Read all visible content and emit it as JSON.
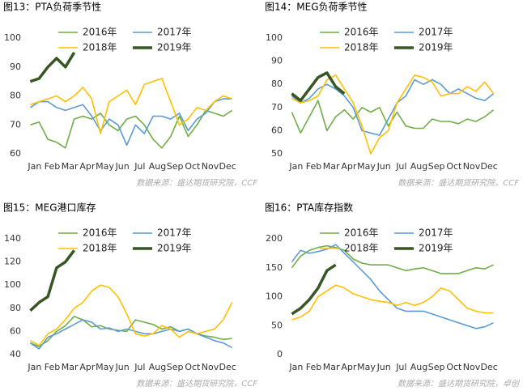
{
  "chart_data": [
    {
      "type": "line",
      "title": "图13：PTA负荷季节性",
      "source": "数据来源：盛达期货研究院，CCF",
      "categories": [
        "Jan",
        null,
        "Feb",
        null,
        "Mar",
        null,
        "Apr",
        null,
        "May",
        null,
        "Jun",
        null,
        "Jul",
        null,
        "Aug",
        null,
        "Sep",
        null,
        "Oct",
        null,
        "Nov",
        null,
        "Dec",
        null
      ],
      "ylim": [
        60,
        100
      ],
      "yticks": [
        60,
        70,
        80,
        90,
        100
      ],
      "series": [
        {
          "name": "2016年",
          "color": "#70ad47",
          "values": [
            70,
            71,
            65,
            64,
            62,
            72,
            73,
            72,
            74,
            70,
            68,
            72,
            73,
            70,
            65,
            62,
            66,
            73,
            66,
            70,
            75,
            74,
            73,
            75
          ]
        },
        {
          "name": "2017年",
          "color": "#5b9bd5",
          "values": [
            76,
            78,
            78,
            76,
            75,
            76,
            77,
            73,
            68,
            72,
            70,
            63,
            70,
            67,
            73,
            73,
            72,
            74,
            68,
            72,
            74,
            78,
            79,
            79
          ]
        },
        {
          "name": "2018年",
          "color": "#ffc000",
          "values": [
            77,
            78,
            79,
            80,
            78,
            80,
            83,
            79,
            67,
            78,
            80,
            82,
            77,
            84,
            85,
            86,
            78,
            70,
            72,
            76,
            75,
            78,
            80,
            79
          ]
        },
        {
          "name": "2019年",
          "color": "#375623",
          "values": [
            85,
            86,
            90,
            93,
            90,
            95,
            null,
            null,
            null,
            null,
            null,
            null,
            null,
            null,
            null,
            null,
            null,
            null,
            null,
            null,
            null,
            null,
            null,
            null
          ]
        }
      ]
    },
    {
      "type": "line",
      "title": "图14：MEG负荷季节性",
      "source": "数据来源：盛达期货研究院，CCF",
      "categories": [
        "Jan",
        null,
        "Feb",
        null,
        "Mar",
        null,
        "Apr",
        null,
        "May",
        null,
        "Jun",
        null,
        "Jul",
        null,
        "Aug",
        null,
        "Sep",
        null,
        "Oct",
        null,
        "Nov",
        null,
        "Dec",
        null
      ],
      "ylim": [
        50,
        100
      ],
      "yticks": [
        50,
        60,
        70,
        80,
        90,
        100
      ],
      "series": [
        {
          "name": "2016年",
          "color": "#70ad47",
          "values": [
            68,
            59,
            66,
            73,
            60,
            66,
            69,
            65,
            70,
            68,
            70,
            62,
            68,
            62,
            61,
            61,
            65,
            64,
            64,
            63,
            65,
            64,
            66,
            69
          ]
        },
        {
          "name": "2017年",
          "color": "#5b9bd5",
          "values": [
            75,
            72,
            74,
            78,
            80,
            78,
            75,
            70,
            60,
            59,
            58,
            65,
            72,
            75,
            82,
            80,
            82,
            80,
            76,
            78,
            76,
            74,
            73,
            76
          ]
        },
        {
          "name": "2018年",
          "color": "#ffc000",
          "values": [
            74,
            72,
            73,
            75,
            82,
            84,
            78,
            72,
            62,
            50,
            57,
            60,
            72,
            78,
            84,
            83,
            81,
            75,
            76,
            76,
            79,
            77,
            81,
            76
          ]
        },
        {
          "name": "2019年",
          "color": "#375623",
          "values": [
            76,
            73,
            78,
            83,
            85,
            79,
            76,
            null,
            null,
            null,
            null,
            null,
            null,
            null,
            null,
            null,
            null,
            null,
            null,
            null,
            null,
            null,
            null,
            null
          ]
        }
      ]
    },
    {
      "type": "line",
      "title": "图15：MEG港口库存",
      "source": "数据来源：盛达期货研究院，CCF",
      "categories": [
        "Jan",
        null,
        "Feb",
        null,
        "Mar",
        null,
        "Apr",
        null,
        "May",
        null,
        "Jun",
        null,
        "Jul",
        null,
        "Aug",
        null,
        "Sep",
        null,
        "Oct",
        null,
        "Nov",
        null,
        "Dec",
        null
      ],
      "ylim": [
        40,
        140
      ],
      "yticks": [
        40,
        60,
        80,
        100,
        120,
        140
      ],
      "series": [
        {
          "name": "2016年",
          "color": "#70ad47",
          "values": [
            50,
            47,
            52,
            60,
            65,
            73,
            70,
            64,
            65,
            62,
            61,
            60,
            70,
            68,
            66,
            62,
            64,
            60,
            62,
            58,
            56,
            55,
            53,
            54
          ]
        },
        {
          "name": "2017年",
          "color": "#5b9bd5",
          "values": [
            50,
            45,
            55,
            58,
            62,
            66,
            70,
            68,
            62,
            63,
            60,
            62,
            60,
            58,
            58,
            60,
            62,
            60,
            62,
            58,
            55,
            52,
            50,
            46
          ]
        },
        {
          "name": "2018年",
          "color": "#ffc000",
          "values": [
            52,
            48,
            58,
            62,
            70,
            80,
            85,
            95,
            100,
            98,
            90,
            75,
            58,
            56,
            58,
            65,
            62,
            55,
            60,
            58,
            60,
            62,
            70,
            85
          ]
        },
        {
          "name": "2019年",
          "color": "#375623",
          "values": [
            78,
            85,
            90,
            115,
            120,
            130,
            null,
            null,
            null,
            null,
            null,
            null,
            null,
            null,
            null,
            null,
            null,
            null,
            null,
            null,
            null,
            null,
            null,
            null
          ]
        }
      ]
    },
    {
      "type": "line",
      "title": "图16：PTA库存指数",
      "source": "数据来源：盛达期货研究院，卓创",
      "categories": [
        "Jan",
        null,
        "Feb",
        null,
        "Mar",
        null,
        "Apr",
        null,
        "May",
        null,
        "Jun",
        null,
        "Jul",
        null,
        "Aug",
        null,
        "Sep",
        null,
        "Oct",
        null,
        "Nov",
        null,
        "Dec",
        null
      ],
      "ylim": [
        0,
        200
      ],
      "yticks": [
        0,
        50,
        100,
        150,
        200
      ],
      "series": [
        {
          "name": "2016年",
          "color": "#70ad47",
          "values": [
            150,
            170,
            180,
            185,
            188,
            185,
            180,
            165,
            158,
            155,
            155,
            155,
            150,
            145,
            148,
            150,
            145,
            140,
            140,
            140,
            145,
            150,
            148,
            155
          ]
        },
        {
          "name": "2017年",
          "color": "#5b9bd5",
          "values": [
            160,
            180,
            175,
            178,
            182,
            190,
            175,
            160,
            145,
            130,
            110,
            95,
            80,
            75,
            75,
            75,
            70,
            65,
            60,
            55,
            50,
            45,
            48,
            55
          ]
        },
        {
          "name": "2018年",
          "color": "#ffc000",
          "values": [
            60,
            65,
            75,
            100,
            110,
            120,
            115,
            105,
            100,
            95,
            92,
            90,
            85,
            90,
            85,
            90,
            100,
            115,
            110,
            95,
            80,
            75,
            72,
            72
          ]
        },
        {
          "name": "2019年",
          "color": "#375623",
          "values": [
            70,
            80,
            95,
            115,
            145,
            155,
            null,
            null,
            null,
            null,
            null,
            null,
            null,
            null,
            null,
            null,
            null,
            null,
            null,
            null,
            null,
            null,
            null,
            null
          ]
        }
      ]
    }
  ]
}
